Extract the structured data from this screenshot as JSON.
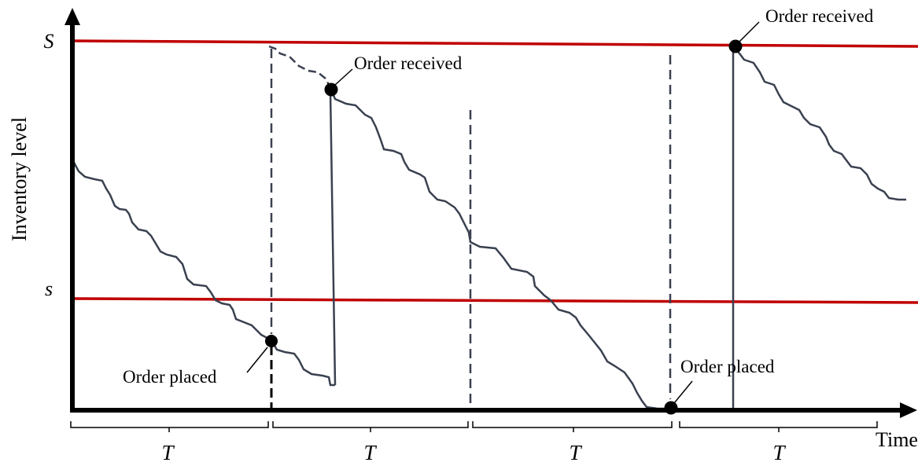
{
  "axes": {
    "y_label": "Inventory level",
    "x_label": "Time"
  },
  "levels": {
    "upper_label": "S",
    "lower_label": "s"
  },
  "annotations": {
    "order_placed_1": "Order placed",
    "order_received_1": "Order received",
    "order_placed_2": "Order placed",
    "order_received_2": "Order received"
  },
  "periods": [
    "T",
    "T",
    "T",
    "T"
  ],
  "colors": {
    "level_lines": "#c00000",
    "inventory_curve": "#3a4150",
    "axes": "#000000",
    "markers": "#000000"
  }
}
